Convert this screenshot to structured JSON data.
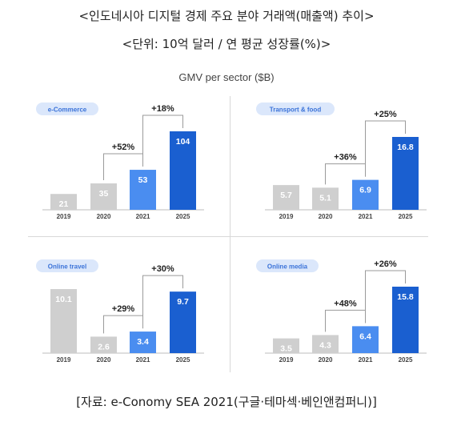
{
  "header": {
    "title": "<인도네시아 디지털 경제 주요 분야 거래액(매출액) 추이>",
    "unit": "<단위: 10억 달러 / 연 평균 성장률(%)>"
  },
  "figure": {
    "title": "GMV per sector ($B)"
  },
  "source": "[자료: e-Conomy SEA 2021(구글·테마섹·베인앤컴퍼니)]",
  "colors": {
    "gray": "#cfcfcf",
    "light_blue": "#4a8df0",
    "dark_blue": "#1a5fd0",
    "tag_bg": "#dbe7fb",
    "tag_text": "#3a72d8",
    "growth_line": "#9a9a9a"
  },
  "chart_data": [
    {
      "type": "bar",
      "title": "e-Commerce",
      "categories": [
        "2019",
        "2020",
        "2021",
        "2025"
      ],
      "values": [
        21,
        35,
        53,
        104
      ],
      "data_labels": [
        "21",
        "35",
        "53",
        "104"
      ],
      "growth": [
        {
          "from": "2020",
          "to": "2021",
          "label": "+52%"
        },
        {
          "from": "2021",
          "to": "2025",
          "label": "+18%"
        }
      ]
    },
    {
      "type": "bar",
      "title": "Transport & food",
      "categories": [
        "2019",
        "2020",
        "2021",
        "2025"
      ],
      "values": [
        5.7,
        5.1,
        6.9,
        16.8
      ],
      "data_labels": [
        "5.7",
        "5.1",
        "6.9",
        "16.8"
      ],
      "growth": [
        {
          "from": "2020",
          "to": "2021",
          "label": "+36%"
        },
        {
          "from": "2021",
          "to": "2025",
          "label": "+25%"
        }
      ]
    },
    {
      "type": "bar",
      "title": "Online travel",
      "categories": [
        "2019",
        "2020",
        "2021",
        "2025"
      ],
      "values": [
        10.1,
        2.6,
        3.4,
        9.7
      ],
      "data_labels": [
        "10.1",
        "2.6",
        "3.4",
        "9.7"
      ],
      "growth": [
        {
          "from": "2020",
          "to": "2021",
          "label": "+29%"
        },
        {
          "from": "2021",
          "to": "2025",
          "label": "+30%"
        }
      ]
    },
    {
      "type": "bar",
      "title": "Online media",
      "categories": [
        "2019",
        "2020",
        "2021",
        "2025"
      ],
      "values": [
        3.5,
        4.3,
        6.4,
        15.8
      ],
      "data_labels": [
        "3.5",
        "4.3",
        "6.4",
        "15.8"
      ],
      "growth": [
        {
          "from": "2020",
          "to": "2021",
          "label": "+48%"
        },
        {
          "from": "2021",
          "to": "2025",
          "label": "+26%"
        }
      ]
    }
  ]
}
